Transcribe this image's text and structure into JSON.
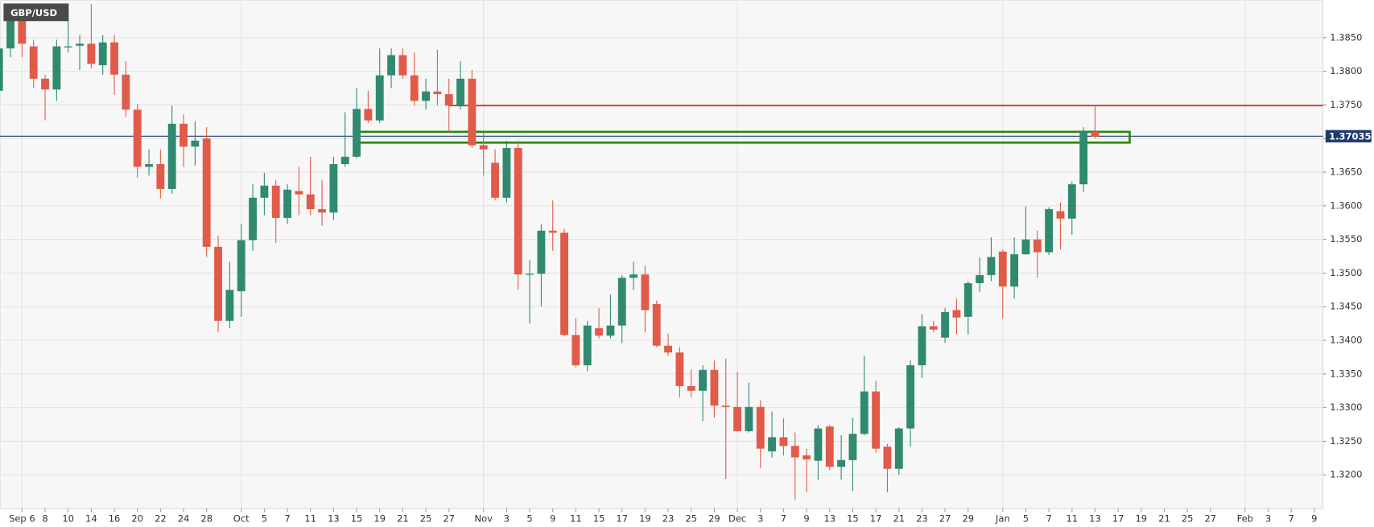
{
  "chart_data": {
    "type": "candlestick",
    "title": "GBP/USD",
    "categories": [
      null,
      null,
      "Sep 6",
      null,
      "8",
      null,
      "10",
      null,
      "14",
      null,
      "16",
      null,
      "20",
      null,
      "22",
      null,
      "24",
      null,
      "28",
      null,
      null,
      "Oct",
      null,
      "5",
      null,
      "7",
      null,
      "11",
      null,
      "13",
      null,
      "15",
      null,
      "19",
      null,
      "21",
      null,
      "25",
      null,
      "27",
      null,
      null,
      "Nov",
      null,
      "3",
      null,
      "5",
      null,
      "9",
      null,
      "11",
      null,
      "15",
      null,
      "17",
      null,
      "19",
      null,
      "23",
      null,
      "25",
      null,
      "29",
      null,
      "Dec",
      null,
      "3",
      null,
      "7",
      null,
      "9",
      null,
      "13",
      null,
      "15",
      null,
      "17",
      null,
      "21",
      null,
      "23",
      null,
      "27",
      null,
      "29",
      null,
      null,
      "Jan",
      null,
      "5",
      null,
      "7",
      null,
      "11",
      null,
      "13",
      null,
      "17",
      null,
      "19",
      null,
      "21",
      null,
      "25",
      null,
      "27",
      null,
      null,
      "Feb",
      null,
      "3",
      null,
      "7",
      null,
      "9"
    ],
    "open": [
      1.3771,
      1.3834,
      1.388,
      1.3837,
      1.3789,
      1.3773,
      1.3836,
      1.3838,
      1.3841,
      1.3809,
      1.3843,
      1.3795,
      1.3743,
      1.3658,
      1.3662,
      1.3625,
      1.3722,
      1.3688,
      1.37,
      1.3539,
      1.3429,
      1.3473,
      1.3549,
      1.3612,
      1.363,
      1.3582,
      1.3622,
      1.3617,
      1.3595,
      1.359,
      1.3662,
      1.3673,
      1.3744,
      1.3727,
      1.3794,
      1.3824,
      1.3794,
      1.3756,
      1.377,
      1.3766,
      1.3749,
      1.3789,
      1.369,
      1.3664,
      1.3612,
      1.3686,
      1.3498,
      1.3499,
      1.3563,
      1.356,
      1.3408,
      1.3363,
      1.3418,
      1.3407,
      1.3422,
      1.3493,
      1.3498,
      1.3454,
      1.3392,
      1.3382,
      1.3332,
      1.3325,
      1.3356,
      1.3303,
      1.3301,
      1.3265,
      1.3301,
      1.3235,
      1.3256,
      1.3243,
      1.3229,
      1.3221,
      1.3272,
      1.3212,
      1.3222,
      1.3261,
      1.3324,
      1.3242,
      1.3209,
      1.3269,
      1.3363,
      1.3421,
      1.3404,
      1.3445,
      1.3435,
      1.3485,
      1.3497,
      1.3532,
      1.348,
      1.3528,
      1.355,
      1.3531,
      1.3592,
      1.3581,
      1.3632,
      1.371,
      null,
      null,
      null,
      null,
      null,
      null,
      null,
      null,
      null,
      null,
      null,
      null,
      null,
      null,
      null,
      null,
      null,
      null,
      null
    ],
    "high": [
      1.3854,
      1.39,
      1.39,
      1.3847,
      1.3795,
      1.3847,
      1.3887,
      1.3854,
      1.39,
      1.3854,
      1.3854,
      1.3815,
      1.3752,
      1.3684,
      1.3684,
      1.3749,
      1.3736,
      1.3726,
      1.3717,
      1.3556,
      1.3517,
      1.3573,
      1.3632,
      1.3649,
      1.3638,
      1.3632,
      1.3658,
      1.3673,
      1.3638,
      1.3673,
      1.3739,
      1.3775,
      1.3771,
      1.3834,
      1.3834,
      1.3834,
      1.3828,
      1.3789,
      1.3832,
      1.3789,
      1.3815,
      1.3802,
      1.371,
      1.3684,
      1.3697,
      1.3697,
      1.352,
      1.3573,
      1.3608,
      1.3566,
      1.3433,
      1.3429,
      1.3448,
      1.3468,
      1.3497,
      1.3517,
      1.3511,
      1.3459,
      1.341,
      1.339,
      1.3357,
      1.3363,
      1.337,
      1.3373,
      1.3353,
      1.3337,
      1.3311,
      1.3294,
      1.3284,
      1.3263,
      1.3239,
      1.3274,
      1.3274,
      1.3259,
      1.3285,
      1.3377,
      1.334,
      1.3246,
      1.3271,
      1.337,
      1.3439,
      1.3429,
      1.3448,
      1.3462,
      1.3488,
      1.3523,
      1.3553,
      1.3535,
      1.3553,
      1.3599,
      1.3563,
      1.3598,
      1.3605,
      1.3636,
      1.3717,
      1.3749,
      null,
      null,
      null,
      null,
      null,
      null,
      null,
      null,
      null,
      null,
      null,
      null,
      null,
      null,
      null,
      null,
      null,
      null,
      null
    ],
    "low": [
      1.3762,
      1.3821,
      1.3821,
      1.3775,
      1.3727,
      1.3756,
      1.3828,
      1.3802,
      1.3804,
      1.3795,
      1.3765,
      1.3732,
      1.3642,
      1.3645,
      1.3611,
      1.3618,
      1.3658,
      1.366,
      1.3524,
      1.3412,
      1.3418,
      1.3435,
      1.3533,
      1.3586,
      1.3545,
      1.3573,
      1.3586,
      1.3586,
      1.357,
      1.3579,
      1.3658,
      1.3671,
      1.3723,
      1.3723,
      1.3775,
      1.3789,
      1.3749,
      1.3743,
      1.3749,
      1.371,
      1.3743,
      1.3686,
      1.3645,
      1.3608,
      1.3605,
      1.3475,
      1.3425,
      1.3451,
      1.3533,
      1.3406,
      1.336,
      1.3354,
      1.3403,
      1.3403,
      1.3396,
      1.3475,
      1.3412,
      1.339,
      1.3377,
      1.3315,
      1.3315,
      1.328,
      1.3285,
      1.3194,
      1.3264,
      1.3263,
      1.321,
      1.3226,
      1.3229,
      1.3163,
      1.3174,
      1.3193,
      1.3207,
      1.3193,
      1.3176,
      1.3259,
      1.3233,
      1.3174,
      1.32,
      1.3242,
      1.3344,
      1.3412,
      1.3396,
      1.3409,
      1.3409,
      1.3472,
      1.3488,
      1.3433,
      1.3462,
      1.3527,
      1.3493,
      1.3527,
      1.3535,
      1.3557,
      1.3621,
      1.37,
      null,
      null,
      null,
      null,
      null,
      null,
      null,
      null,
      null,
      null,
      null,
      null,
      null,
      null,
      null,
      null,
      null,
      null,
      null
    ],
    "close": [
      1.3834,
      1.388,
      1.3841,
      1.3789,
      1.3773,
      1.3837,
      1.3837,
      1.3841,
      1.3811,
      1.3843,
      1.3795,
      1.3743,
      1.3658,
      1.3662,
      1.3625,
      1.3722,
      1.3688,
      1.3697,
      1.3539,
      1.3429,
      1.3475,
      1.3549,
      1.3612,
      1.363,
      1.3582,
      1.3624,
      1.3617,
      1.3595,
      1.359,
      1.3662,
      1.3673,
      1.3744,
      1.3727,
      1.3794,
      1.3824,
      1.3794,
      1.3756,
      1.377,
      1.3766,
      1.3749,
      1.3789,
      1.369,
      1.3684,
      1.3612,
      1.3686,
      1.3498,
      1.3499,
      1.3563,
      1.356,
      1.3408,
      1.3363,
      1.3422,
      1.3407,
      1.3422,
      1.3493,
      1.3498,
      1.3445,
      1.3392,
      1.3382,
      1.3332,
      1.3325,
      1.3356,
      1.3303,
      1.3301,
      1.3265,
      1.3301,
      1.3239,
      1.3256,
      1.3243,
      1.3226,
      1.3223,
      1.3269,
      1.3212,
      1.3222,
      1.3261,
      1.3324,
      1.3239,
      1.3209,
      1.3269,
      1.3363,
      1.3421,
      1.3416,
      1.3442,
      1.3434,
      1.3485,
      1.3497,
      1.3524,
      1.348,
      1.3528,
      1.355,
      1.3531,
      1.3595,
      1.3581,
      1.3632,
      1.371,
      1.3703,
      null,
      null,
      null,
      null,
      null,
      null,
      null,
      null,
      null,
      null,
      null,
      null,
      null,
      null,
      null,
      null,
      null,
      null,
      null
    ],
    "up_color": "#2f8a6f",
    "down_color": "#e05b49",
    "ylim": [
      1.315,
      1.3906
    ],
    "yticks": [
      {
        "value": 1.32,
        "label": "1.3200"
      },
      {
        "value": 1.325,
        "label": "1.3250"
      },
      {
        "value": 1.33,
        "label": "1.3300"
      },
      {
        "value": 1.335,
        "label": "1.3350"
      },
      {
        "value": 1.34,
        "label": "1.3400"
      },
      {
        "value": 1.345,
        "label": "1.3450"
      },
      {
        "value": 1.35,
        "label": "1.3500"
      },
      {
        "value": 1.355,
        "label": "1.3550"
      },
      {
        "value": 1.36,
        "label": "1.3600"
      },
      {
        "value": 1.365,
        "label": "1.3650"
      },
      {
        "value": 1.37,
        "label": "1.3700"
      },
      {
        "value": 1.375,
        "label": "1.3750"
      },
      {
        "value": 1.38,
        "label": "1.3800"
      },
      {
        "value": 1.385,
        "label": "1.3850"
      }
    ],
    "grid": true,
    "current_price": {
      "value": 1.37035,
      "label": "1.370350",
      "color": "#1e3a6e"
    },
    "resistance_line": {
      "value": 1.3749,
      "color": "#e8271b"
    },
    "zone": {
      "upper": 1.371,
      "lower": 1.3694,
      "color": "#2d8a12"
    }
  }
}
